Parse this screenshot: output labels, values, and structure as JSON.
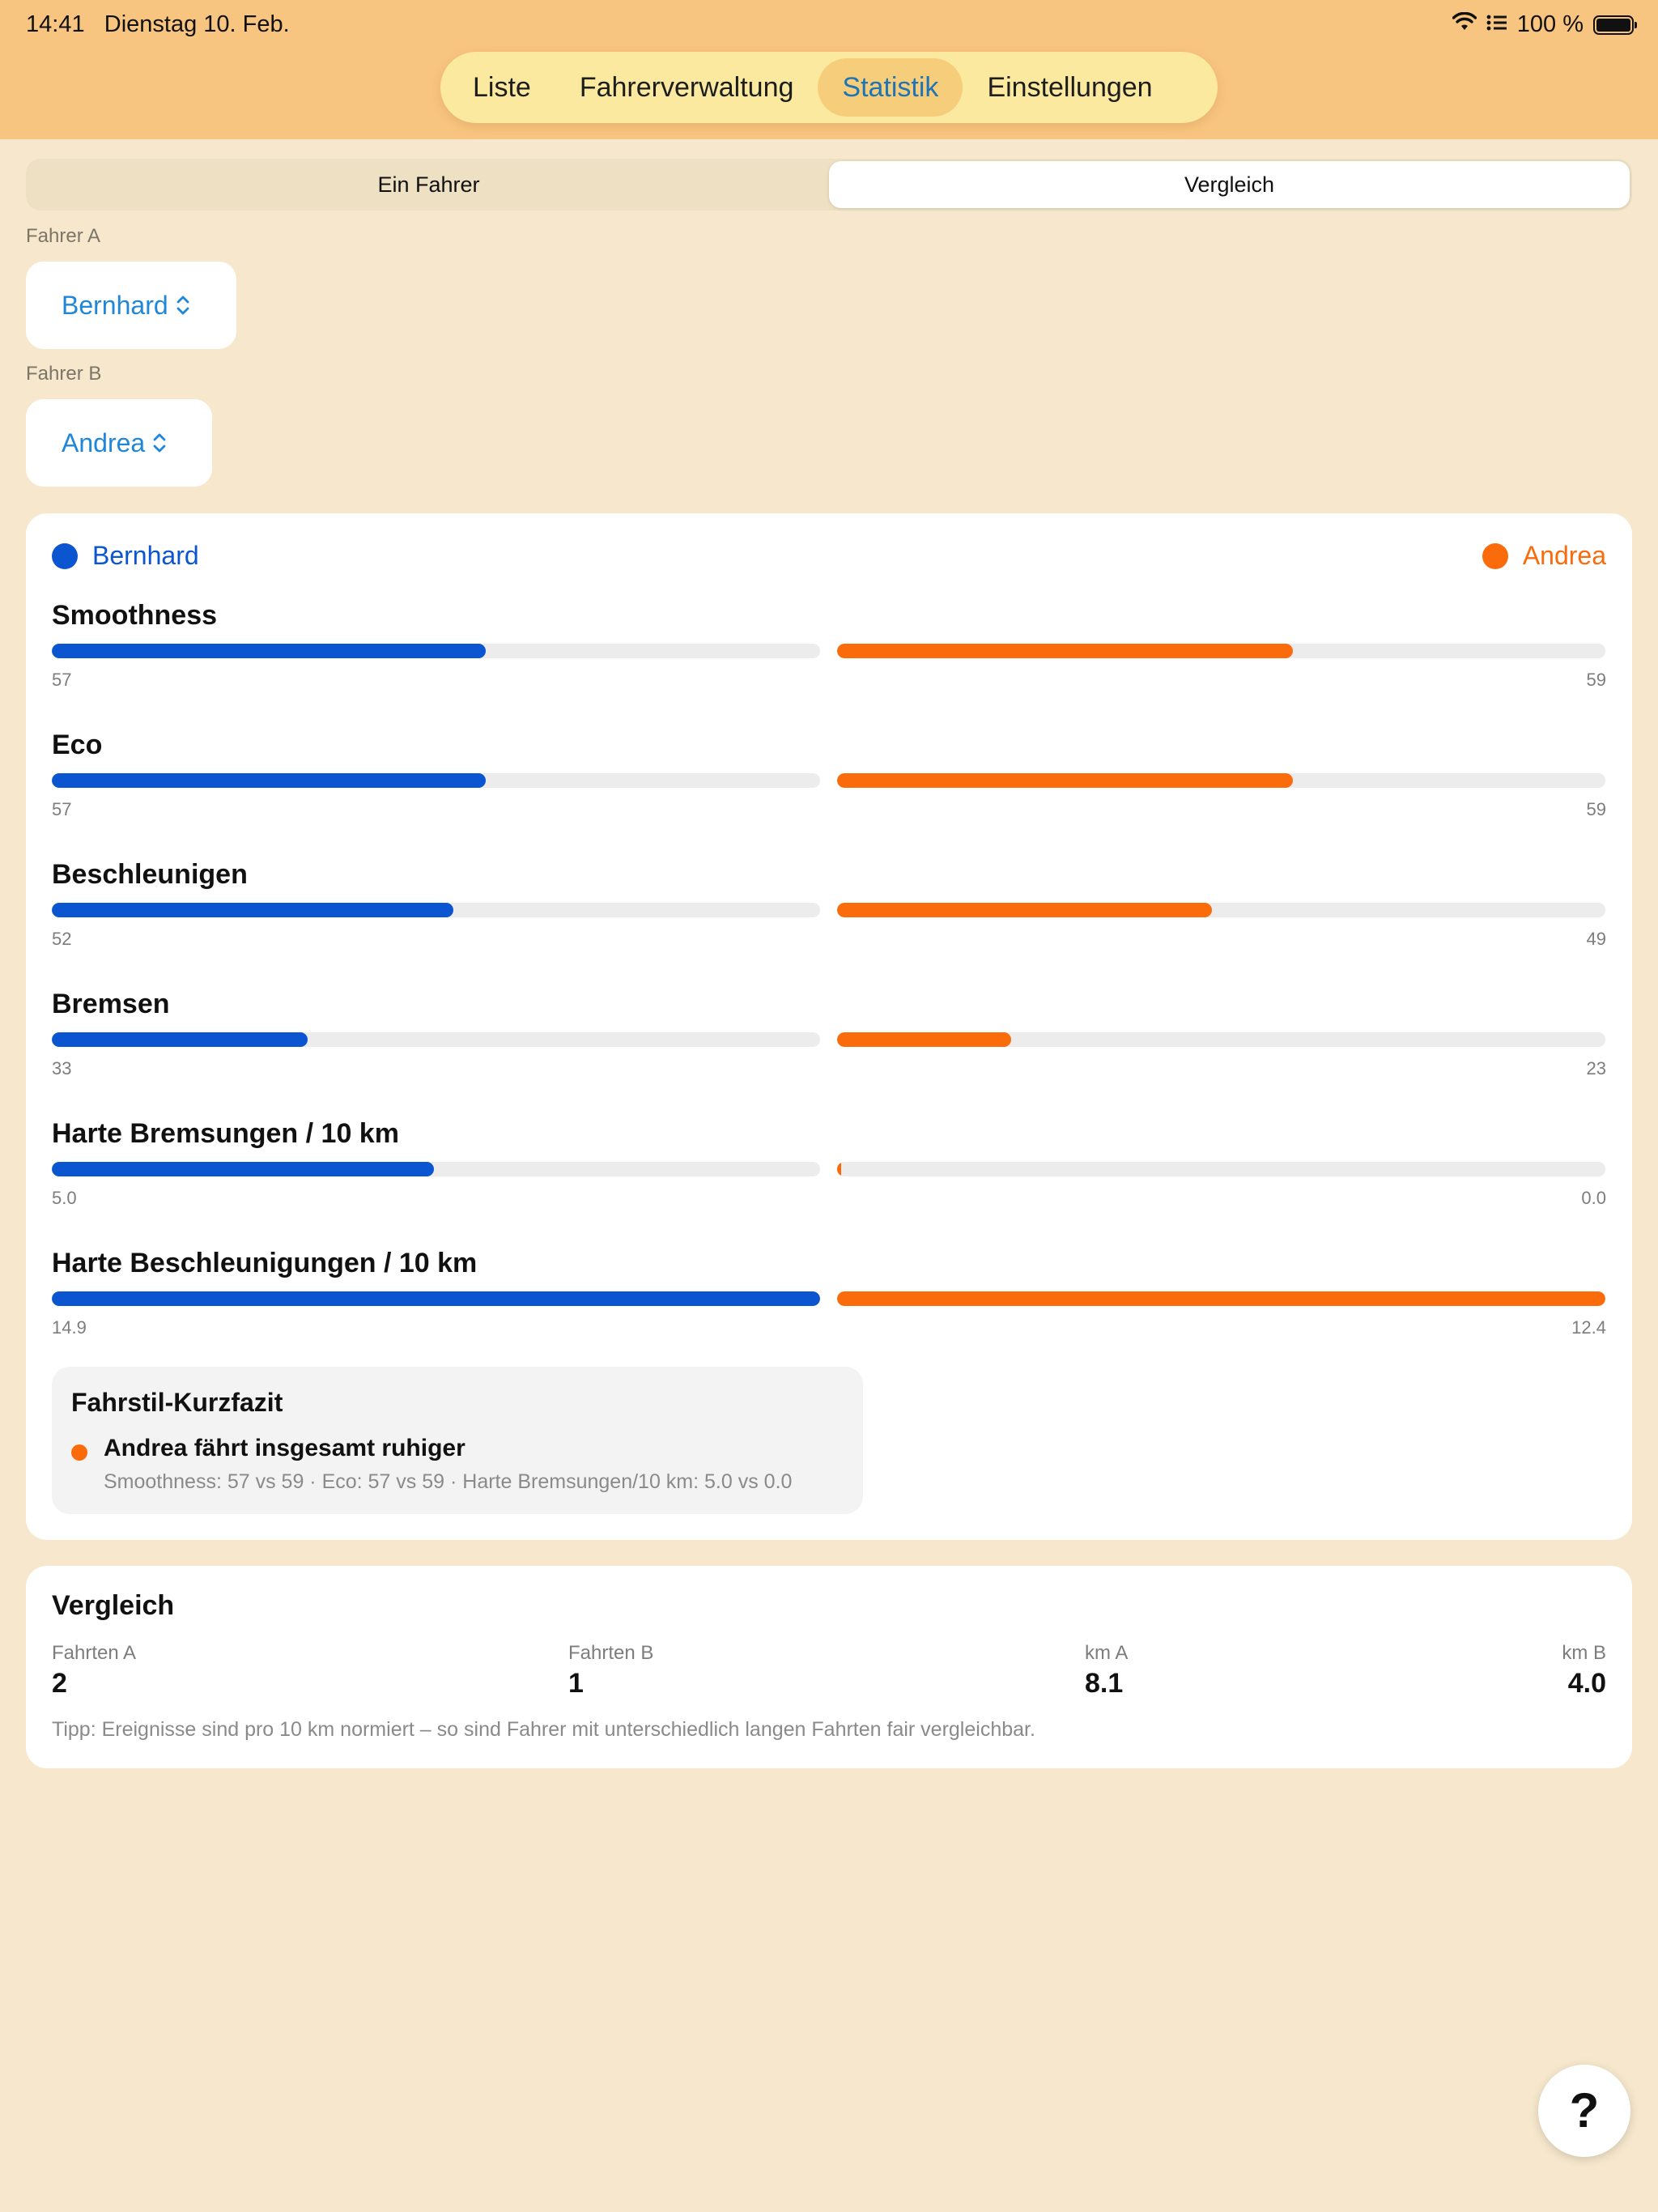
{
  "status_bar": {
    "time": "14:41",
    "date": "Dienstag 10. Feb.",
    "battery": "100 %"
  },
  "tabs": [
    {
      "label": "Liste",
      "active": false
    },
    {
      "label": "Fahrerverwaltung",
      "active": false
    },
    {
      "label": "Statistik",
      "active": true
    },
    {
      "label": "Einstellungen",
      "active": false
    }
  ],
  "mode": {
    "single_label": "Ein Fahrer",
    "compare_label": "Vergleich",
    "selected": "Vergleich"
  },
  "driver_a": {
    "label": "Fahrer A",
    "value": "Bernhard"
  },
  "driver_b": {
    "label": "Fahrer B",
    "value": "Andrea"
  },
  "colors": {
    "driver_a": "#0b55d0",
    "driver_b": "#fa6b0c",
    "accent": "#1f86d8"
  },
  "legend": {
    "a": "Bernhard",
    "b": "Andrea"
  },
  "metrics": [
    {
      "title": "Smoothness",
      "a": "57",
      "b": "59",
      "fill_a": 0.565,
      "fill_b": 0.593
    },
    {
      "title": "Eco",
      "a": "57",
      "b": "59",
      "fill_a": 0.565,
      "fill_b": 0.593
    },
    {
      "title": "Beschleunigen",
      "a": "52",
      "b": "49",
      "fill_a": 0.523,
      "fill_b": 0.488
    },
    {
      "title": "Bremsen",
      "a": "33",
      "b": "23",
      "fill_a": 0.333,
      "fill_b": 0.227
    },
    {
      "title": "Harte Bremsungen / 10 km",
      "a": "5.0",
      "b": "0.0",
      "fill_a": 0.497,
      "fill_b": 0.005
    },
    {
      "title": "Harte Beschleunigungen / 10 km",
      "a": "14.9",
      "b": "12.4",
      "fill_a": 1.0,
      "fill_b": 1.0
    }
  ],
  "summary": {
    "title": "Fahrstil-Kurzfazit",
    "headline": "Andrea fährt insgesamt ruhiger",
    "detail": "Smoothness: 57 vs 59 · Eco: 57 vs 59 · Harte Bremsungen/10 km: 5.0 vs 0.0"
  },
  "comparison": {
    "title": "Vergleich",
    "stats": [
      {
        "label": "Fahrten A",
        "value": "2"
      },
      {
        "label": "Fahrten B",
        "value": "1"
      },
      {
        "label": "km A",
        "value": "8.1"
      },
      {
        "label": "km B",
        "value": "4.0"
      }
    ],
    "tip": "Tipp: Ereignisse sind pro 10 km normiert – so sind Fahrer mit unterschiedlich langen Fahrten fair vergleichbar."
  },
  "help_button": "?"
}
